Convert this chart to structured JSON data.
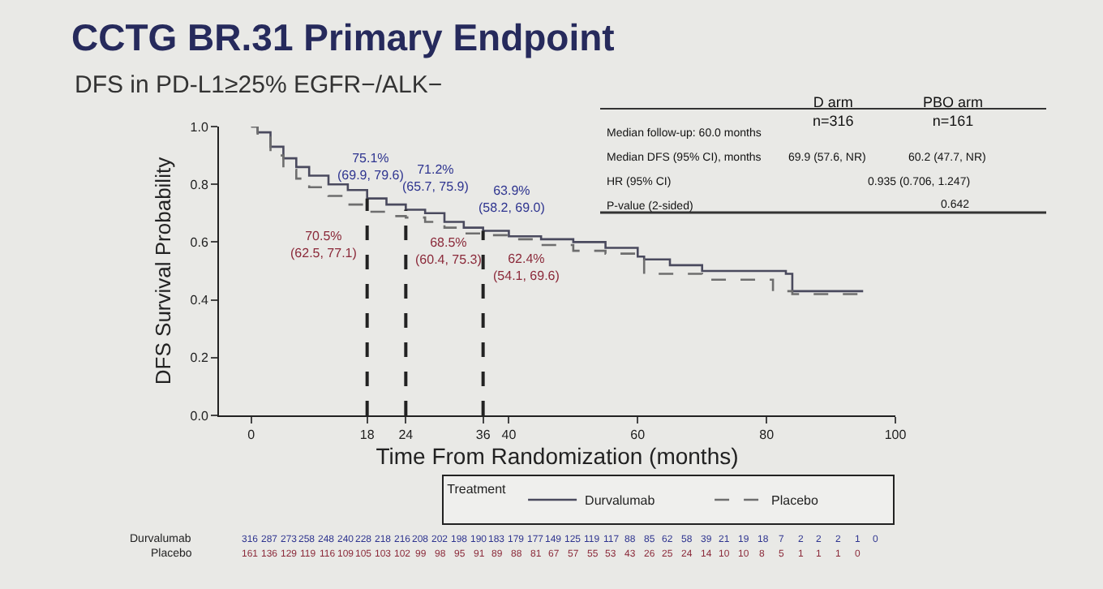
{
  "chart_data": {
    "type": "step",
    "title": "CCTG BR.31 Primary Endpoint",
    "subtitle": "DFS in PD-L1≥25% EGFR−/ALK−",
    "xlabel": "Time From Randomization (months)",
    "ylabel": "DFS Survival Probability",
    "legend_title": "Treatment",
    "legend": "bottom",
    "grid": false,
    "xlim": [
      -5,
      100
    ],
    "xticks": [
      0,
      18,
      24,
      36,
      40,
      60,
      80,
      100
    ],
    "ylim": [
      0,
      1.0
    ],
    "yticks": [
      {
        "value": 0,
        "label": "0.0"
      },
      0.2,
      0.4,
      0.6,
      0.8,
      {
        "value": 1,
        "label": "1.0"
      }
    ],
    "series": [
      {
        "name": "Durvalumab",
        "color": "#4a4a5e",
        "line_style": "solid",
        "x": [
          0,
          1,
          3,
          5,
          7,
          9,
          12,
          15,
          18,
          21,
          24,
          27,
          30,
          33,
          36,
          40,
          45,
          50,
          55,
          60,
          61,
          65,
          70,
          75,
          80,
          83,
          84,
          95
        ],
        "values": [
          1,
          0.98,
          0.93,
          0.89,
          0.86,
          0.83,
          0.8,
          0.78,
          0.751,
          0.73,
          0.712,
          0.7,
          0.67,
          0.65,
          0.639,
          0.62,
          0.61,
          0.6,
          0.58,
          0.55,
          0.54,
          0.52,
          0.5,
          0.5,
          0.5,
          0.49,
          0.43,
          0.43
        ]
      },
      {
        "name": "Placebo",
        "color": "#6e6e6e",
        "line_style": "dashed",
        "x": [
          0,
          1,
          3,
          5,
          7,
          9,
          12,
          15,
          18,
          21,
          24,
          27,
          30,
          33,
          36,
          40,
          45,
          50,
          55,
          60,
          61,
          65,
          70,
          75,
          80,
          81,
          84,
          95
        ],
        "values": [
          1,
          0.97,
          0.9,
          0.85,
          0.82,
          0.79,
          0.76,
          0.73,
          0.705,
          0.69,
          0.685,
          0.67,
          0.65,
          0.63,
          0.624,
          0.61,
          0.59,
          0.57,
          0.56,
          0.54,
          0.49,
          0.49,
          0.47,
          0.47,
          0.47,
          0.43,
          0.42,
          0.42
        ]
      }
    ],
    "ref_lines": [
      {
        "axis": "x",
        "value": 18,
        "color": "#222222",
        "line_style": "dashed"
      },
      {
        "axis": "x",
        "value": 24,
        "color": "#222222",
        "line_style": "dashed"
      },
      {
        "axis": "x",
        "value": 36,
        "color": "#222222",
        "line_style": "dashed"
      }
    ],
    "annotations": [
      {
        "text": "75.1%\n(69.9, 79.6)",
        "x": 18,
        "y": 0.751
      },
      {
        "text": "70.5%\n(62.5, 77.1)",
        "x": 18,
        "y": 0.705
      },
      {
        "text": "71.2%\n(65.7, 75.9)",
        "x": 24,
        "y": 0.712
      },
      {
        "text": "68.5%\n(60.4, 75.3)",
        "x": 24,
        "y": 0.685
      },
      {
        "text": "63.9%\n(58.2, 69.0)",
        "x": 36,
        "y": 0.639
      },
      {
        "text": "62.4%\n(54.1, 69.6)",
        "x": 36,
        "y": 0.624
      },
      "D arm\nn=316",
      "PBO arm\nn=161",
      "Median follow-up: 60.0 months",
      "Median DFS (95% CI), months",
      "69.9 (57.6, NR)",
      "60.2 (47.7, NR)",
      "HR (95% CI)",
      "0.935 (0.706, 1.247)",
      "P-value (2-sided)",
      "0.642",
      "Durvalumab",
      "316 287 273 258 248 240 228 218 216 208 202 198 190 183 179 177 149 125 119 117 88 85 62 58 39 21 19 18 7 2 2 2 1 0",
      "Placebo",
      "161 136 129 119 116 109 105 103 102 99 98 95 91 89 88 81 67 57 55 53 43 26 25 24 14 10 10 8 5 1 1 1 0"
    ]
  }
}
